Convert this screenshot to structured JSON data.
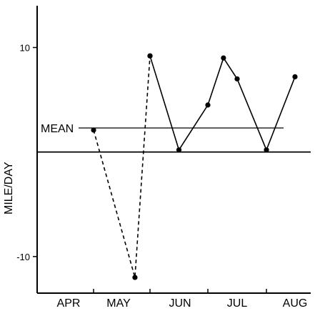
{
  "chart_data": {
    "type": "line",
    "title": "",
    "xlabel": "",
    "ylabel": "MILE/DAY",
    "ylim": [
      -13.5,
      14
    ],
    "yticks": [
      {
        "value": 10,
        "label": "10"
      },
      {
        "value": -10,
        "label": "-10"
      }
    ],
    "x_categories": [
      "APR",
      "MAY",
      "JUN",
      "JUL",
      "AUG"
    ],
    "grid": false,
    "mean": {
      "label": "MEAN",
      "value": 2.3
    },
    "baseline_value": 0,
    "series": [
      {
        "style": "dashed",
        "points": [
          {
            "x": "APR 30",
            "y": 2.1
          },
          {
            "x": "MAY 22",
            "y": -12.0
          },
          {
            "x": "MAY 30",
            "y": 9.2
          }
        ]
      },
      {
        "style": "solid",
        "points": [
          {
            "x": "MAY 30",
            "y": 9.2
          },
          {
            "x": "JUN 15",
            "y": 0.2
          },
          {
            "x": "JUN 30",
            "y": 4.5
          },
          {
            "x": "JUL 8",
            "y": 9.0
          },
          {
            "x": "JUL 15",
            "y": 7.0
          },
          {
            "x": "JUL 30",
            "y": 0.2
          },
          {
            "x": "AUG 15",
            "y": 7.2
          }
        ]
      }
    ]
  }
}
